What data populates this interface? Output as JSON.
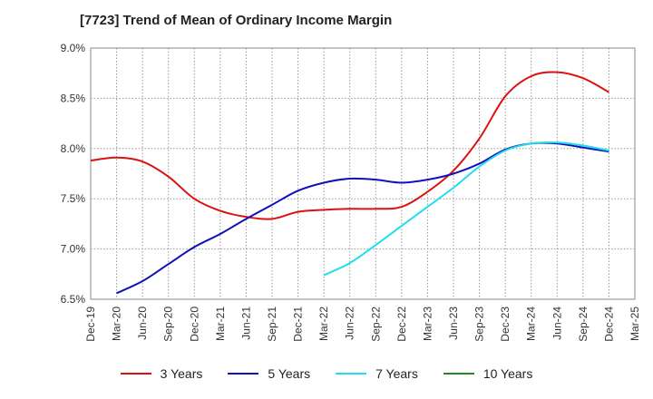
{
  "chart_data": {
    "type": "line",
    "title": "[7723]  Trend of Mean of Ordinary Income Margin",
    "x": [
      "Dec-19",
      "Mar-20",
      "Jun-20",
      "Sep-20",
      "Dec-20",
      "Mar-21",
      "Jun-21",
      "Sep-21",
      "Dec-21",
      "Mar-22",
      "Jun-22",
      "Sep-22",
      "Dec-22",
      "Mar-23",
      "Jun-23",
      "Sep-23",
      "Dec-23",
      "Mar-24",
      "Jun-24",
      "Sep-24",
      "Dec-24",
      "Mar-25"
    ],
    "ylim": [
      6.5,
      9.0
    ],
    "y_ticks": [
      "9.0%",
      "8.5%",
      "8.0%",
      "7.5%",
      "7.0%",
      "6.5%"
    ],
    "y_tick_values": [
      9.0,
      8.5,
      8.0,
      7.5,
      7.0,
      6.5
    ],
    "grid": true,
    "legend_position": "bottom",
    "series": [
      {
        "name": "3 Years",
        "color": "#dd1111",
        "values": [
          7.88,
          7.91,
          7.87,
          7.72,
          7.5,
          7.38,
          7.32,
          7.3,
          7.37,
          7.39,
          7.4,
          7.4,
          7.42,
          7.57,
          7.78,
          8.1,
          8.52,
          8.72,
          8.76,
          8.7,
          8.56,
          null
        ]
      },
      {
        "name": "5 Years",
        "color": "#1111bb",
        "values": [
          null,
          6.56,
          6.68,
          6.85,
          7.02,
          7.15,
          7.3,
          7.44,
          7.58,
          7.66,
          7.7,
          7.69,
          7.66,
          7.69,
          7.75,
          7.85,
          7.99,
          8.05,
          8.05,
          8.01,
          7.97,
          null
        ]
      },
      {
        "name": "7 Years",
        "color": "#22ddee",
        "values": [
          null,
          null,
          null,
          null,
          null,
          null,
          null,
          null,
          null,
          6.74,
          6.86,
          7.04,
          7.23,
          7.42,
          7.61,
          7.82,
          7.98,
          8.05,
          8.06,
          8.03,
          7.98,
          null
        ]
      },
      {
        "name": "10 Years",
        "color": "#228822",
        "values": [
          null,
          null,
          null,
          null,
          null,
          null,
          null,
          null,
          null,
          null,
          null,
          null,
          null,
          null,
          null,
          null,
          null,
          null,
          null,
          null,
          null,
          null
        ]
      }
    ]
  }
}
